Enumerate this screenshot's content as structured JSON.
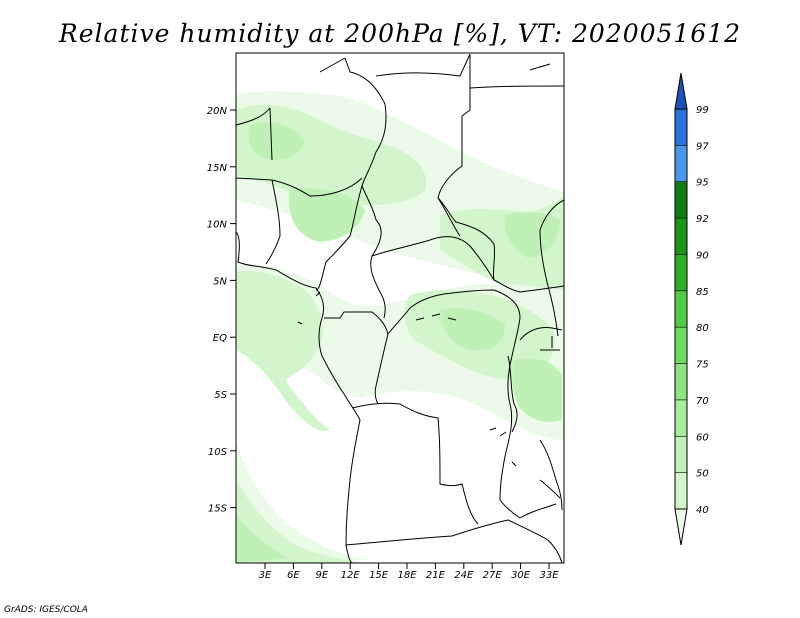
{
  "title": "Relative humidity at 200hPa [%], VT: 2020051612",
  "credit": "GrADS: IGES/COLA",
  "map": {
    "lat_ticks": [
      "20N",
      "15N",
      "10N",
      "5N",
      "EQ",
      "5S",
      "10S",
      "15S"
    ],
    "lon_ticks": [
      "3E",
      "6E",
      "9E",
      "12E",
      "15E",
      "18E",
      "21E",
      "24E",
      "27E",
      "30E",
      "33E"
    ]
  },
  "colorbar": {
    "levels": [
      "40",
      "50",
      "60",
      "70",
      "75",
      "80",
      "85",
      "90",
      "92",
      "95",
      "97",
      "99"
    ],
    "colors": [
      "#ecfbe9",
      "#d2f5cb",
      "#bff0b6",
      "#a7eb9c",
      "#8ee481",
      "#6fdb63",
      "#4fcb45",
      "#2fae2a",
      "#1b9516",
      "#137c10",
      "#4b97e8",
      "#2b73d8",
      "#1d52b8"
    ]
  }
}
